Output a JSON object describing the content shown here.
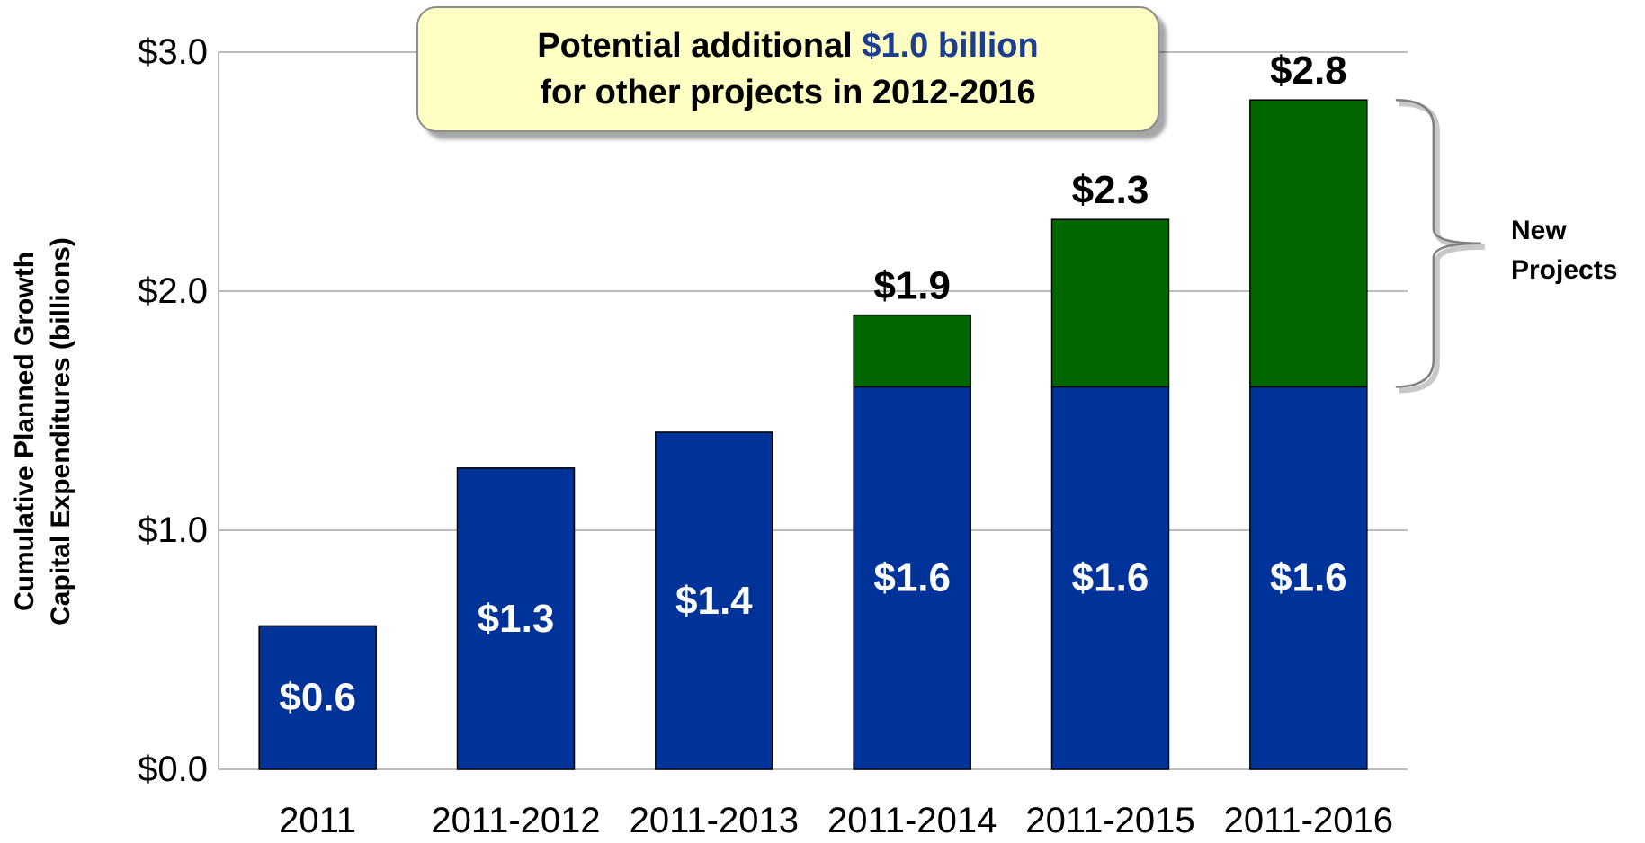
{
  "chart_data": {
    "type": "bar",
    "stacked": true,
    "categories": [
      "2011",
      "2011-2012",
      "2011-2013",
      "2011-2014",
      "2011-2015",
      "2011-2016"
    ],
    "series": [
      {
        "values": [
          0.6,
          1.26,
          1.41,
          1.6,
          1.6,
          1.6
        ],
        "color": "#003399",
        "labels": [
          "$0.6",
          "$1.3",
          "$1.4",
          "$1.6",
          "$1.6",
          "$1.6"
        ]
      },
      {
        "name": "New Projects",
        "values": [
          0,
          0,
          0,
          0.3,
          0.7,
          1.2
        ],
        "color": "#006600"
      }
    ],
    "totals": [
      null,
      null,
      null,
      "$1.9",
      "$2.3",
      "$2.8"
    ],
    "ylabel_lines": [
      "Cumulative Planned Growth",
      "Capital Expenditures (billions)"
    ],
    "ylim": [
      0,
      3
    ],
    "yticks": [
      0,
      1,
      2,
      3
    ],
    "ytick_labels": [
      "$0.0",
      "$1.0",
      "$2.0",
      "$3.0"
    ],
    "grid": true,
    "annotation": {
      "line1_prefix": "Potential additional ",
      "line1_highlight": "$1.0 billion",
      "line2": "for other projects in 2012-2016"
    },
    "bracket_label_lines": [
      "New",
      "Projects"
    ]
  }
}
